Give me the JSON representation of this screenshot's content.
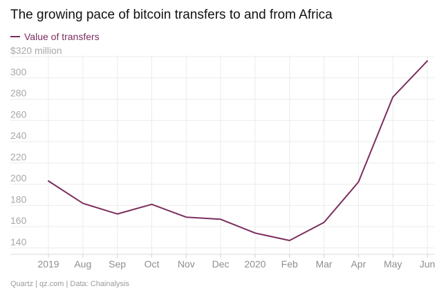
{
  "chart_data": {
    "type": "line",
    "title": "The growing pace of bitcoin transfers to and from Africa",
    "categories": [
      "2019",
      "Aug",
      "Sep",
      "Oct",
      "Nov",
      "Dec",
      "2020",
      "Feb",
      "Mar",
      "Apr",
      "May",
      "Jun"
    ],
    "series": [
      {
        "name": "Value of transfers",
        "color": "#7b2d5e",
        "values": [
          203,
          182,
          172,
          181,
          169,
          167,
          154,
          147,
          164,
          202,
          282,
          316
        ]
      }
    ],
    "y_unit_label": "$320 million",
    "yticks": [
      140,
      160,
      180,
      200,
      220,
      240,
      260,
      280,
      300,
      320
    ],
    "ylim": [
      134,
      320
    ],
    "grid": true,
    "legend_position": "top-left"
  },
  "source": "Quartz | qz.com | Data: Chainalysis"
}
